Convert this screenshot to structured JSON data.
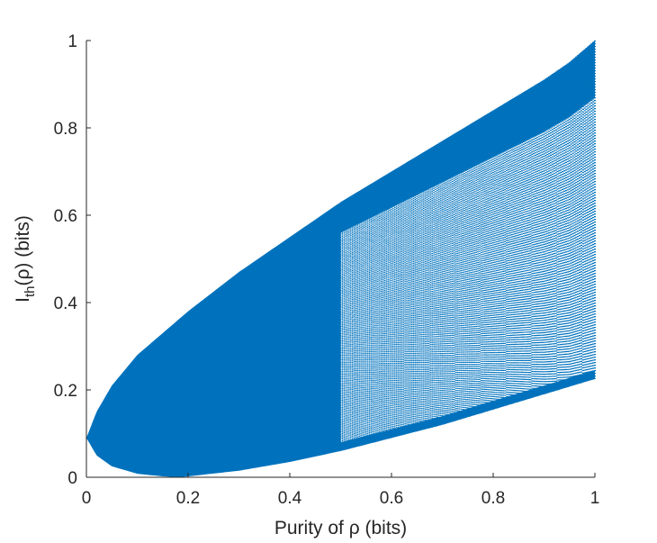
{
  "chart_data": {
    "type": "scatter",
    "title": "",
    "xlabel": "Purity of ρ (bits)",
    "ylabel": "I_th(ρ) (bits)",
    "ylabel_main": "I",
    "ylabel_sub": "th",
    "ylabel_rest": "(ρ) (bits)",
    "xlim": [
      0,
      1
    ],
    "ylim": [
      0,
      1
    ],
    "x_ticks": [
      0,
      0.2,
      0.4,
      0.6,
      0.8,
      1
    ],
    "y_ticks": [
      0,
      0.2,
      0.4,
      0.6,
      0.8,
      1
    ],
    "x_tick_labels": [
      "0",
      "0.2",
      "0.4",
      "0.6",
      "0.8",
      "1"
    ],
    "y_tick_labels": [
      "0",
      "0.2",
      "0.4",
      "0.6",
      "0.8",
      "1"
    ],
    "grid": false,
    "legend": "none",
    "series_color": "#0072BD",
    "region": {
      "description_points": "region of points: upper boundary and lower boundary vs purity",
      "upper_boundary": [
        [
          0.0,
          0.09
        ],
        [
          0.02,
          0.15
        ],
        [
          0.05,
          0.21
        ],
        [
          0.1,
          0.28
        ],
        [
          0.15,
          0.33
        ],
        [
          0.2,
          0.38
        ],
        [
          0.3,
          0.47
        ],
        [
          0.4,
          0.55
        ],
        [
          0.5,
          0.63
        ],
        [
          0.6,
          0.7
        ],
        [
          0.7,
          0.77
        ],
        [
          0.8,
          0.84
        ],
        [
          0.9,
          0.91
        ],
        [
          0.95,
          0.95
        ],
        [
          1.0,
          1.0
        ]
      ],
      "lower_boundary": [
        [
          0.0,
          0.09
        ],
        [
          0.02,
          0.05
        ],
        [
          0.05,
          0.025
        ],
        [
          0.1,
          0.008
        ],
        [
          0.15,
          0.002
        ],
        [
          0.18,
          0.0
        ],
        [
          0.2,
          0.002
        ],
        [
          0.3,
          0.015
        ],
        [
          0.4,
          0.035
        ],
        [
          0.5,
          0.06
        ],
        [
          0.6,
          0.09
        ],
        [
          0.7,
          0.12
        ],
        [
          0.8,
          0.155
        ],
        [
          0.9,
          0.19
        ],
        [
          1.0,
          0.225
        ]
      ],
      "dense_until_x": 0.5
    }
  }
}
